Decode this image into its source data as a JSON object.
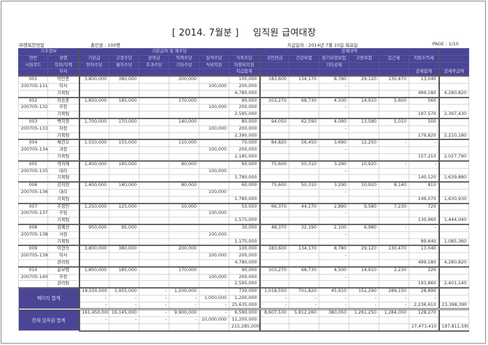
{
  "title": {
    "period": "[ 2014. 7월분 ]",
    "name": "임직원 급여대장"
  },
  "company": "㈜행복한연필",
  "headcount": "총인원 : 100명",
  "pay_date": "지급일자 : 2014년 7월 10일 목요일",
  "page": "PAGE : 1/10",
  "header": {
    "groups": [
      "기초정보",
      "기본급여 및 제수당",
      "공제내역",
      ""
    ],
    "row1": [
      "연번",
      "성명",
      "기본급",
      "고정수당",
      "상여금",
      "직책수당",
      "실적수당",
      "가족수당",
      "국민연금",
      "건강보험",
      "장기요양보험",
      "고용보험",
      "갑근세",
      "지방소득세",
      ""
    ],
    "row2": [
      "사원코드",
      "직위/직책",
      "연차수당",
      "월차수당",
      "초과수당",
      "기타수당",
      "식비지원",
      "차량비지원",
      "",
      "",
      "기타공제",
      "",
      "",
      "",
      ""
    ],
    "row3": [
      "",
      "부서",
      "",
      "",
      "",
      "",
      "",
      "지급합계",
      "",
      "",
      "",
      "",
      "",
      "공제합계",
      "공제후급여"
    ]
  },
  "employees": [
    {
      "no": "001",
      "code": "200705-131",
      "name": "박민종",
      "title": "이사",
      "dept": "기획팀",
      "rows": [
        [
          "3,800,000",
          "380,000",
          "",
          "200,000",
          "",
          "100,000",
          "183,600",
          "134,170",
          "8,780",
          "29,120",
          "130,470",
          "13,040",
          ""
        ],
        [
          "",
          "",
          "",
          "",
          "100,000",
          "200,000",
          "",
          "",
          "-",
          "",
          "",
          "",
          ""
        ],
        [
          "",
          "",
          "",
          "",
          "",
          "4,780,000",
          "",
          "",
          "",
          "",
          "",
          "499,180",
          "4,280,820"
        ]
      ]
    },
    {
      "no": "002",
      "code": "200705-132",
      "name": "차승훈",
      "title": "부장",
      "dept": "기획팀",
      "rows": [
        [
          "1,850,000",
          "185,000",
          "",
          "170,000",
          "",
          "90,000",
          "103,270",
          "68,730",
          "4,500",
          "14,910",
          "5,600",
          "560",
          ""
        ],
        [
          "",
          "",
          "",
          "",
          "100,000",
          "200,000",
          "",
          "",
          "-",
          "",
          "",
          "",
          ""
        ],
        [
          "",
          "",
          "",
          "",
          "",
          "2,595,000",
          "",
          "",
          "",
          "",
          "",
          "197,570",
          "2,397,430"
        ]
      ]
    },
    {
      "no": "003",
      "code": "200705-133",
      "name": "백지영",
      "title": "차장",
      "dept": "기획팀",
      "rows": [
        [
          "1,700,000",
          "170,000",
          "",
          "140,000",
          "",
          "80,000",
          "94,050",
          "62,590",
          "4,090",
          "13,580",
          "5,010",
          "500",
          ""
        ],
        [
          "",
          "",
          "",
          "",
          "100,000",
          "200,000",
          "",
          "",
          "-",
          "",
          "",
          "",
          ""
        ],
        [
          "",
          "",
          "",
          "",
          "",
          "2,390,000",
          "",
          "",
          "",
          "",
          "",
          "179,820",
          "2,210,180"
        ]
      ]
    },
    {
      "no": "004",
      "code": "200705-134",
      "name": "채건오",
      "title": "과장",
      "dept": "기획팀",
      "rows": [
        [
          "1,550,000",
          "155,000",
          "",
          "110,000",
          "",
          "70,000",
          "84,820",
          "56,450",
          "3,690",
          "12,250",
          "-",
          "-",
          ""
        ],
        [
          "",
          "",
          "",
          "",
          "100,000",
          "200,000",
          "",
          "",
          "-",
          "",
          "",
          "",
          ""
        ],
        [
          "",
          "",
          "",
          "",
          "",
          "2,185,000",
          "",
          "",
          "",
          "",
          "",
          "157,210",
          "2,027,790"
        ]
      ]
    },
    {
      "no": "005",
      "code": "200705-135",
      "name": "곽지애",
      "title": "대리",
      "dept": "기획팀",
      "rows": [
        [
          "1,400,000",
          "140,000",
          "",
          "80,000",
          "",
          "60,000",
          "75,600",
          "50,310",
          "3,290",
          "10,920",
          "-",
          "-",
          ""
        ],
        [
          "",
          "",
          "",
          "",
          "100,000",
          "",
          "",
          "",
          "-",
          "",
          "",
          "",
          ""
        ],
        [
          "",
          "",
          "",
          "",
          "",
          "1,780,000",
          "",
          "",
          "",
          "",
          "",
          "140,120",
          "1,639,880"
        ]
      ]
    },
    {
      "no": "006",
      "code": "200705-136",
      "name": "강지연",
      "title": "대리",
      "dept": "기획팀",
      "rows": [
        [
          "1,400,000",
          "140,000",
          "",
          "80,000",
          "",
          "60,000",
          "75,600",
          "50,310",
          "3,290",
          "10,920",
          "8,140",
          "810",
          ""
        ],
        [
          "",
          "",
          "",
          "",
          "100,000",
          "",
          "",
          "",
          "-",
          "",
          "",
          "",
          ""
        ],
        [
          "",
          "",
          "",
          "",
          "",
          "1,780,000",
          "",
          "",
          "",
          "",
          "",
          "149,070",
          "1,630,930"
        ]
      ]
    },
    {
      "no": "007",
      "code": "200705-137",
      "name": "주정민",
      "title": "주임",
      "dept": "기획팀",
      "rows": [
        [
          "1,250,000",
          "125,000",
          "",
          "50,000",
          "",
          "50,000",
          "66,370",
          "44,170",
          "2,890",
          "9,580",
          "7,230",
          "720",
          ""
        ],
        [
          "",
          "",
          "",
          "",
          "100,000",
          "",
          "",
          "",
          "-",
          "",
          "",
          "",
          ""
        ],
        [
          "",
          "",
          "",
          "",
          "",
          "1,575,000",
          "",
          "",
          "",
          "",
          "",
          "130,960",
          "1,444,040"
        ]
      ]
    },
    {
      "no": "008",
      "code": "200705-138",
      "name": "김혜선",
      "title": "사원",
      "dept": "기획팀",
      "rows": [
        [
          "950,000",
          "95,000",
          "",
          "",
          "",
          "30,000",
          "48,370",
          "32,190",
          "2,100",
          "6,980",
          "-",
          "-",
          ""
        ],
        [
          "",
          "",
          "",
          "",
          "100,000",
          "",
          "",
          "",
          "-",
          "",
          "",
          "",
          ""
        ],
        [
          "",
          "",
          "",
          "",
          "",
          "1,175,000",
          "",
          "",
          "",
          "",
          "",
          "89,640",
          "1,085,360"
        ]
      ]
    },
    {
      "no": "009",
      "code": "200705-139",
      "name": "이현숙",
      "title": "이사",
      "dept": "관리팀",
      "rows": [
        [
          "3,800,000",
          "380,000",
          "",
          "200,000",
          "",
          "100,000",
          "183,600",
          "134,170",
          "8,780",
          "29,120",
          "130,470",
          "13,040",
          ""
        ],
        [
          "",
          "",
          "",
          "",
          "100,000",
          "200,000",
          "",
          "",
          "-",
          "",
          "",
          "",
          ""
        ],
        [
          "",
          "",
          "",
          "",
          "",
          "4,780,000",
          "",
          "",
          "",
          "",
          "",
          "499,180",
          "4,280,820"
        ]
      ]
    },
    {
      "no": "010",
      "code": "200705-140",
      "name": "윤보영",
      "title": "부장",
      "dept": "관리팀",
      "rows": [
        [
          "1,850,000",
          "185,000",
          "",
          "170,000",
          "",
          "90,000",
          "103,270",
          "68,730",
          "4,500",
          "14,910",
          "2,230",
          "220",
          ""
        ],
        [
          "",
          "",
          "",
          "",
          "100,000",
          "200,000",
          "",
          "",
          "-",
          "",
          "",
          "",
          ""
        ],
        [
          "",
          "",
          "",
          "",
          "",
          "2,595,000",
          "",
          "",
          "",
          "",
          "",
          "193,860",
          "2,401,140"
        ]
      ]
    }
  ],
  "sums": [
    {
      "label": "페이지 합계",
      "rows": [
        [
          "19,550,000",
          "1,955,000",
          "-",
          "1,200,000",
          "-",
          "730,000",
          "1,018,550",
          "701,820",
          "45,910",
          "152,290",
          "289,150",
          "28,890",
          ""
        ],
        [
          "-",
          "-",
          "-",
          "-",
          "1,000,000",
          "1,200,000",
          "-",
          "-",
          "-",
          "-",
          "-",
          "-",
          ""
        ],
        [
          "-",
          "-",
          "-",
          "-",
          "-",
          "25,635,000",
          "-",
          "-",
          "-",
          "-",
          "-",
          "2,236,610",
          "23,398,390"
        ]
      ]
    },
    {
      "label": "전체 임직원 합계",
      "rows": [
        [
          "161,450,000",
          "16,145,000",
          "-",
          "9,900,000",
          "-",
          "6,590,000",
          "8,607,530",
          "5,812,260",
          "380,050",
          "1,261,250",
          "1,284,050",
          "128,270",
          ""
        ],
        [
          "-",
          "-",
          "-",
          "-",
          "10,000,000",
          "11,200,000",
          "",
          "",
          "",
          "",
          "",
          "",
          ""
        ],
        [
          "",
          "",
          "",
          "",
          "",
          "215,285,000",
          "",
          "",
          "",
          "",
          "",
          "17,473,410",
          "197,811,590"
        ]
      ]
    }
  ],
  "colors": {
    "header_bg": "#4b4596",
    "header_text": "#d9d7f2",
    "border": "#d6d6d6"
  }
}
